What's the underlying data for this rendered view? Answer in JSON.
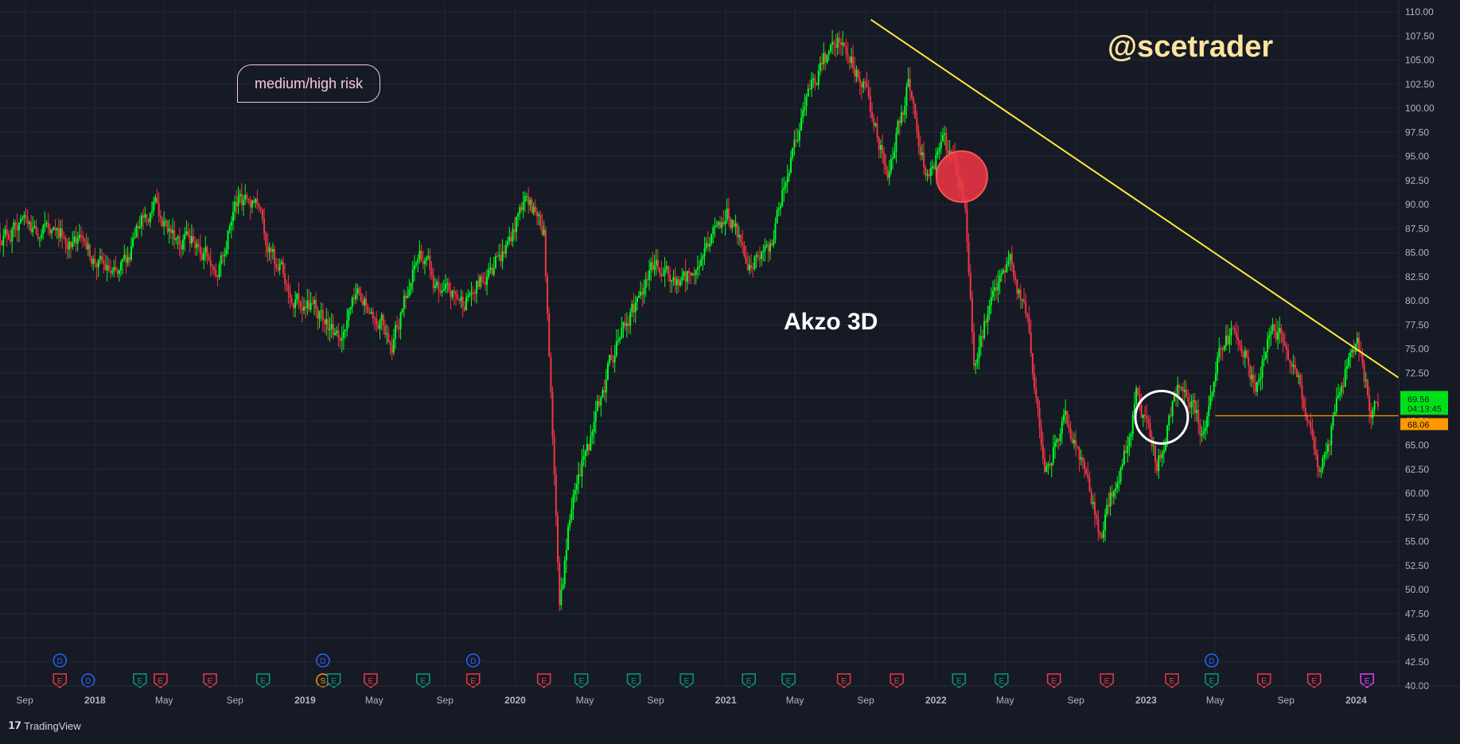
{
  "colors": {
    "background": "#161a25",
    "grid": "#232735",
    "up": "#00ff22",
    "down": "#f23645",
    "trendline": "#ffeb3b",
    "support": "#ff9800",
    "author": "#fbe49d",
    "risk": "#f8c8dc",
    "axis_text": "#b2b5be"
  },
  "annotations": {
    "author": "@scetrader",
    "chart_title": "Akzo 3D",
    "risk_label": "medium/high risk"
  },
  "footer": {
    "brand": "TradingView",
    "logo_icon": "tradingview-logo-icon"
  },
  "chart_data": {
    "type": "candlestick",
    "title": "Akzo 3D",
    "xlabel": "",
    "ylabel": "",
    "ylim": [
      40,
      110
    ],
    "grid": true,
    "y_ticks": [
      "110.00",
      "107.50",
      "105.00",
      "102.50",
      "100.00",
      "97.50",
      "95.00",
      "92.50",
      "90.00",
      "87.50",
      "85.00",
      "82.50",
      "80.00",
      "77.50",
      "75.00",
      "72.50",
      "70.00",
      "67.50",
      "65.00",
      "62.50",
      "60.00",
      "57.50",
      "55.00",
      "52.50",
      "50.00",
      "47.50",
      "45.00",
      "42.50",
      "40.00"
    ],
    "x_ticks": [
      "Sep",
      "2018",
      "May",
      "Sep",
      "2019",
      "May",
      "Sep",
      "2020",
      "May",
      "Sep",
      "2021",
      "May",
      "Sep",
      "2022",
      "May",
      "Sep",
      "2023",
      "May",
      "Sep",
      "2024"
    ],
    "x_tick_dates": [
      "2017-09-01",
      "2018-01-01",
      "2018-05-01",
      "2018-09-01",
      "2019-01-01",
      "2019-05-01",
      "2019-09-01",
      "2020-01-01",
      "2020-05-01",
      "2020-09-01",
      "2021-01-01",
      "2021-05-01",
      "2021-09-01",
      "2022-01-01",
      "2022-05-01",
      "2022-09-01",
      "2023-01-01",
      "2023-05-01",
      "2023-09-01",
      "2024-01-01"
    ],
    "x_range": [
      "2017-07-20",
      "2024-03-15"
    ],
    "price_path": [
      [
        "2017-07-20",
        87
      ],
      [
        "2017-09-15",
        87.5
      ],
      [
        "2017-11-10",
        87
      ],
      [
        "2018-01-05",
        84
      ],
      [
        "2018-02-10",
        82
      ],
      [
        "2018-03-20",
        88
      ],
      [
        "2018-04-15",
        90
      ],
      [
        "2018-05-15",
        87
      ],
      [
        "2018-07-01",
        86
      ],
      [
        "2018-08-01",
        83
      ],
      [
        "2018-09-01",
        90
      ],
      [
        "2018-10-10",
        91
      ],
      [
        "2018-11-01",
        85
      ],
      [
        "2018-12-15",
        80
      ],
      [
        "2019-01-20",
        79
      ],
      [
        "2019-03-01",
        76
      ],
      [
        "2019-04-01",
        80
      ],
      [
        "2019-05-01",
        79
      ],
      [
        "2019-06-01",
        76
      ],
      [
        "2019-07-20",
        85
      ],
      [
        "2019-08-20",
        81
      ],
      [
        "2019-10-01",
        80
      ],
      [
        "2019-11-20",
        83
      ],
      [
        "2019-12-20",
        86
      ],
      [
        "2020-01-20",
        91
      ],
      [
        "2020-02-20",
        87
      ],
      [
        "2020-03-01",
        74
      ],
      [
        "2020-03-18",
        47
      ],
      [
        "2020-04-10",
        60
      ],
      [
        "2020-05-15",
        66
      ],
      [
        "2020-06-15",
        74
      ],
      [
        "2020-08-01",
        80
      ],
      [
        "2020-09-01",
        84
      ],
      [
        "2020-10-15",
        81
      ],
      [
        "2020-12-01",
        86
      ],
      [
        "2021-01-05",
        89
      ],
      [
        "2021-02-15",
        84
      ],
      [
        "2021-03-20",
        86
      ],
      [
        "2021-05-01",
        97
      ],
      [
        "2021-06-15",
        104
      ],
      [
        "2021-07-20",
        107
      ],
      [
        "2021-09-01",
        102
      ],
      [
        "2021-10-10",
        93
      ],
      [
        "2021-11-15",
        103
      ],
      [
        "2021-12-15",
        93
      ],
      [
        "2022-01-15",
        97
      ],
      [
        "2022-02-20",
        91
      ],
      [
        "2022-03-08",
        74
      ],
      [
        "2022-04-01",
        79
      ],
      [
        "2022-05-10",
        84
      ],
      [
        "2022-06-10",
        78
      ],
      [
        "2022-07-10",
        62
      ],
      [
        "2022-08-15",
        68
      ],
      [
        "2022-09-25",
        60
      ],
      [
        "2022-10-10",
        56
      ],
      [
        "2022-11-20",
        63
      ],
      [
        "2022-12-15",
        70
      ],
      [
        "2023-01-20",
        63
      ],
      [
        "2023-02-25",
        71
      ],
      [
        "2023-03-20",
        70
      ],
      [
        "2023-04-10",
        66
      ],
      [
        "2023-05-10",
        75
      ],
      [
        "2023-06-10",
        77
      ],
      [
        "2023-07-10",
        71
      ],
      [
        "2023-08-10",
        78
      ],
      [
        "2023-09-10",
        74
      ],
      [
        "2023-10-10",
        68
      ],
      [
        "2023-10-28",
        61
      ],
      [
        "2023-11-20",
        67
      ],
      [
        "2023-12-20",
        74
      ],
      [
        "2024-01-05",
        75
      ],
      [
        "2024-01-25",
        69
      ],
      [
        "2024-02-10",
        69.56
      ]
    ],
    "trendline": {
      "from": [
        "2021-09-10",
        109.2
      ],
      "to": [
        "2024-03-15",
        72.0
      ]
    },
    "support_line": {
      "price": 68.06,
      "from": "2023-05-01"
    },
    "last_price": "69.56",
    "countdown": "04:13:45",
    "support_price": "68.06",
    "highlights": [
      {
        "type": "filled-circle",
        "color": "#f23645",
        "center": [
          "2022-02-15",
          92.9
        ]
      },
      {
        "type": "outlined-circle",
        "color": "#ffffff",
        "center": [
          "2023-01-28",
          67.9
        ]
      }
    ],
    "event_markers": [
      {
        "date": "2017-11-01",
        "kind": "D",
        "color": "#2962ff",
        "row": 1
      },
      {
        "date": "2017-11-01",
        "kind": "E",
        "color": "#f23645",
        "row": 2
      },
      {
        "date": "2017-12-20",
        "kind": "D",
        "color": "#2962ff",
        "row": 2
      },
      {
        "date": "2018-03-20",
        "kind": "E",
        "color": "#089981",
        "row": 2
      },
      {
        "date": "2018-04-25",
        "kind": "E",
        "color": "#f23645",
        "row": 2
      },
      {
        "date": "2018-07-20",
        "kind": "E",
        "color": "#f23645",
        "row": 2
      },
      {
        "date": "2018-10-20",
        "kind": "E",
        "color": "#089981",
        "row": 2
      },
      {
        "date": "2019-02-01",
        "kind": "D",
        "color": "#2962ff",
        "row": 1
      },
      {
        "date": "2019-02-01",
        "kind": "S",
        "color": "#ff9800",
        "row": 2
      },
      {
        "date": "2019-02-20",
        "kind": "E",
        "color": "#089981",
        "row": 2
      },
      {
        "date": "2019-04-25",
        "kind": "E",
        "color": "#f23645",
        "row": 2
      },
      {
        "date": "2019-07-25",
        "kind": "E",
        "color": "#089981",
        "row": 2
      },
      {
        "date": "2019-10-20",
        "kind": "D",
        "color": "#2962ff",
        "row": 1
      },
      {
        "date": "2019-10-20",
        "kind": "E",
        "color": "#f23645",
        "row": 2
      },
      {
        "date": "2020-02-20",
        "kind": "E",
        "color": "#f23645",
        "row": 2
      },
      {
        "date": "2020-04-25",
        "kind": "E",
        "color": "#089981",
        "row": 2
      },
      {
        "date": "2020-07-25",
        "kind": "E",
        "color": "#089981",
        "row": 2
      },
      {
        "date": "2020-10-25",
        "kind": "E",
        "color": "#089981",
        "row": 2
      },
      {
        "date": "2021-02-10",
        "kind": "E",
        "color": "#089981",
        "row": 2
      },
      {
        "date": "2021-04-20",
        "kind": "E",
        "color": "#089981",
        "row": 2
      },
      {
        "date": "2021-07-25",
        "kind": "E",
        "color": "#f23645",
        "row": 2
      },
      {
        "date": "2021-10-25",
        "kind": "E",
        "color": "#f23645",
        "row": 2
      },
      {
        "date": "2022-02-10",
        "kind": "E",
        "color": "#089981",
        "row": 2
      },
      {
        "date": "2022-04-25",
        "kind": "E",
        "color": "#089981",
        "row": 2
      },
      {
        "date": "2022-07-25",
        "kind": "E",
        "color": "#f23645",
        "row": 2
      },
      {
        "date": "2022-10-25",
        "kind": "E",
        "color": "#f23645",
        "row": 2
      },
      {
        "date": "2023-02-15",
        "kind": "E",
        "color": "#f23645",
        "row": 2
      },
      {
        "date": "2023-04-25",
        "kind": "D",
        "color": "#2962ff",
        "row": 1
      },
      {
        "date": "2023-04-25",
        "kind": "E",
        "color": "#089981",
        "row": 2
      },
      {
        "date": "2023-07-25",
        "kind": "E",
        "color": "#f23645",
        "row": 2
      },
      {
        "date": "2023-10-20",
        "kind": "E",
        "color": "#f23645",
        "row": 2
      },
      {
        "date": "2024-01-20",
        "kind": "E",
        "color": "#e040fb",
        "row": 2
      }
    ]
  }
}
